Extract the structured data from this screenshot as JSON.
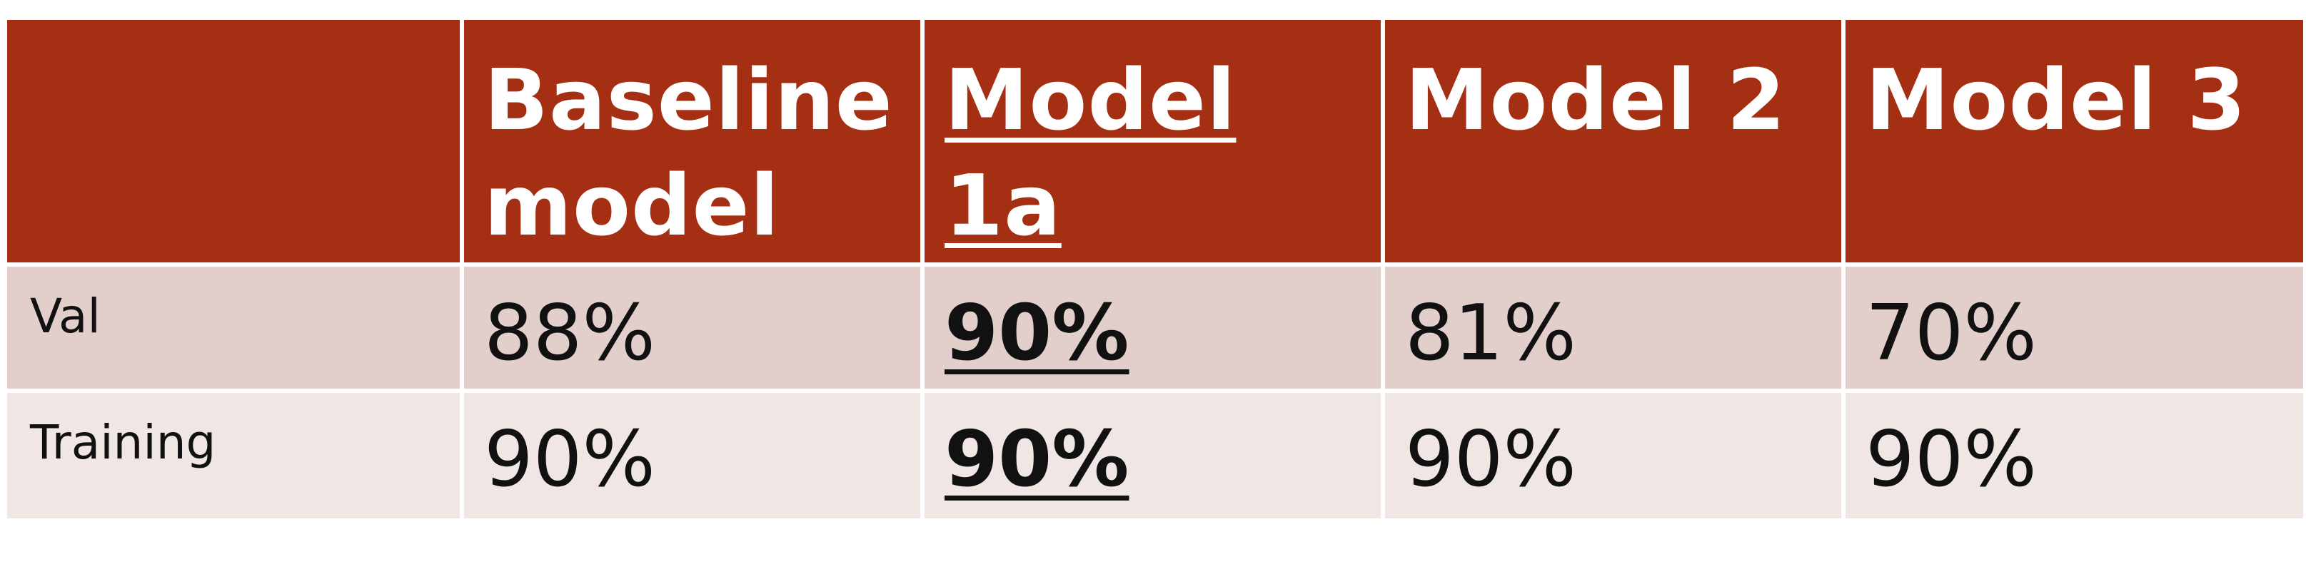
{
  "table": {
    "columns": [
      "",
      "Baseline model",
      "Model 1a",
      "Model 2",
      "Model 3"
    ],
    "header_lines": {
      "baseline": [
        "Baseline",
        "model"
      ],
      "model1a": [
        "Model",
        "1a"
      ],
      "model2": "Model 2",
      "model3": "Model 3"
    },
    "rows": [
      {
        "label": "Val",
        "values": [
          "88%",
          "90%",
          "81%",
          "70%"
        ]
      },
      {
        "label": "Training",
        "values": [
          "90%",
          "90%",
          "90%",
          "90%"
        ]
      }
    ],
    "highlighted_column": "Model 1a"
  },
  "colors": {
    "header_bg": "#a52f12",
    "header_text": "#ffffff",
    "row_val_bg": "#e2cfcc",
    "row_training_bg": "#f0e7e5",
    "cell_text": "#111111",
    "grid_line": "#ffffff"
  }
}
